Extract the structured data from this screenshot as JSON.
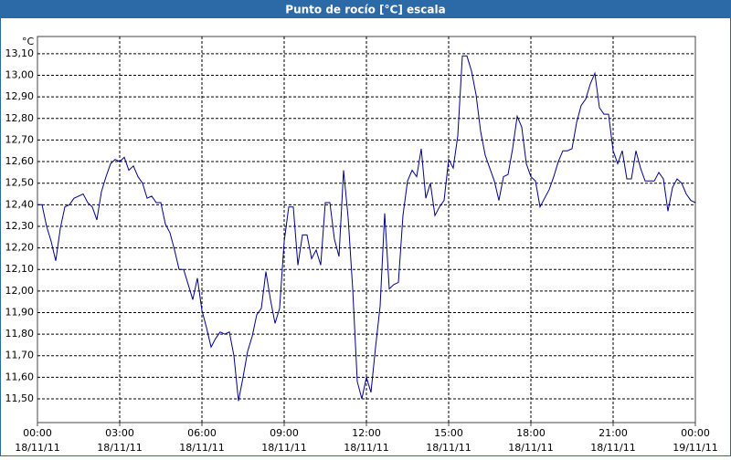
{
  "chart_data": {
    "type": "line",
    "title": "Punto de rocío [°C] escala",
    "y_unit": "°C",
    "x": [
      0,
      10,
      20,
      30,
      40,
      50,
      60,
      70,
      80,
      90,
      100,
      110,
      120,
      130,
      140,
      150,
      160,
      170,
      180,
      190,
      200,
      210,
      220,
      230,
      240,
      250,
      260,
      270,
      280,
      290,
      300,
      310,
      320,
      330,
      340,
      350,
      360,
      370,
      380,
      390,
      400,
      410,
      420,
      430,
      440,
      450,
      460,
      470,
      480,
      490,
      500,
      510,
      520,
      530,
      540,
      550,
      560,
      570,
      580,
      590,
      600,
      610,
      620,
      630,
      640,
      650,
      660,
      670,
      680,
      690,
      700,
      710,
      720,
      730,
      740,
      750,
      760,
      770,
      780,
      790,
      800,
      810,
      820,
      830,
      840,
      850,
      860,
      870,
      880,
      890,
      900,
      910,
      920,
      930,
      940,
      950,
      960,
      970,
      980,
      990,
      1000,
      1010,
      1020,
      1030,
      1040,
      1050,
      1060,
      1070,
      1080,
      1090,
      1100,
      1110,
      1120,
      1130,
      1140,
      1150,
      1160,
      1170,
      1180,
      1190,
      1200,
      1210,
      1220,
      1230,
      1240,
      1250,
      1260,
      1270,
      1280,
      1290,
      1300,
      1310,
      1320,
      1330,
      1340,
      1350,
      1360,
      1370,
      1380,
      1390,
      1400,
      1410,
      1420,
      1430,
      1440
    ],
    "series": [
      {
        "color": "#00008b",
        "values": [
          12.4,
          12.4,
          12.3,
          12.23,
          12.14,
          12.29,
          12.39,
          12.4,
          12.43,
          12.44,
          12.45,
          12.41,
          12.39,
          12.33,
          12.46,
          12.53,
          12.59,
          12.61,
          12.6,
          12.62,
          12.56,
          12.58,
          12.53,
          12.5,
          12.43,
          12.44,
          12.41,
          12.41,
          12.31,
          12.27,
          12.19,
          12.1,
          12.1,
          12.03,
          11.96,
          12.06,
          11.91,
          11.83,
          11.74,
          11.78,
          11.81,
          11.8,
          11.81,
          11.7,
          11.49,
          11.6,
          11.72,
          11.79,
          11.89,
          11.92,
          12.09,
          11.96,
          11.85,
          11.92,
          12.23,
          12.39,
          12.39,
          12.12,
          12.26,
          12.26,
          12.15,
          12.19,
          12.12,
          12.41,
          12.41,
          12.24,
          12.16,
          12.56,
          12.34,
          12.01,
          11.58,
          11.5,
          11.6,
          11.53,
          11.74,
          11.93,
          12.36,
          12.01,
          12.03,
          12.04,
          12.35,
          12.51,
          12.56,
          12.53,
          12.66,
          12.43,
          12.5,
          12.35,
          12.39,
          12.42,
          12.61,
          12.57,
          12.72,
          13.09,
          13.09,
          13.02,
          12.91,
          12.74,
          12.63,
          12.57,
          12.51,
          12.42,
          12.53,
          12.54,
          12.66,
          12.81,
          12.76,
          12.59,
          12.53,
          12.51,
          12.39,
          12.43,
          12.47,
          12.53,
          12.6,
          12.65,
          12.65,
          12.66,
          12.78,
          12.86,
          12.89,
          12.96,
          13.01,
          12.85,
          12.82,
          12.82,
          12.65,
          12.59,
          12.65,
          12.52,
          12.52,
          12.65,
          12.57,
          12.51,
          12.51,
          12.51,
          12.55,
          12.52,
          12.37,
          12.48,
          12.52,
          12.5,
          12.45,
          12.42,
          12.41
        ]
      }
    ],
    "xlim": [
      0,
      1440
    ],
    "xticks": [
      {
        "value": 0,
        "label": "00:00",
        "date": "18/11/11"
      },
      {
        "value": 180,
        "label": "03:00",
        "date": "18/11/11"
      },
      {
        "value": 360,
        "label": "06:00",
        "date": "18/11/11"
      },
      {
        "value": 540,
        "label": "09:00",
        "date": "18/11/11"
      },
      {
        "value": 720,
        "label": "12:00",
        "date": "18/11/11"
      },
      {
        "value": 900,
        "label": "15:00",
        "date": "18/11/11"
      },
      {
        "value": 1080,
        "label": "18:00",
        "date": "18/11/11"
      },
      {
        "value": 1260,
        "label": "21:00",
        "date": "18/11/11"
      },
      {
        "value": 1440,
        "label": "00:00",
        "date": "19/11/11"
      }
    ],
    "ylim": [
      11.39,
      13.18
    ],
    "yticks": [
      {
        "value": 11.5,
        "label": "11,50"
      },
      {
        "value": 11.6,
        "label": "11,60"
      },
      {
        "value": 11.7,
        "label": "11,70"
      },
      {
        "value": 11.8,
        "label": "11,80"
      },
      {
        "value": 11.9,
        "label": "11,90"
      },
      {
        "value": 12.0,
        "label": "12,00"
      },
      {
        "value": 12.1,
        "label": "12,10"
      },
      {
        "value": 12.2,
        "label": "12,20"
      },
      {
        "value": 12.3,
        "label": "12,30"
      },
      {
        "value": 12.4,
        "label": "12,40"
      },
      {
        "value": 12.5,
        "label": "12,50"
      },
      {
        "value": 12.6,
        "label": "12,60"
      },
      {
        "value": 12.7,
        "label": "12,70"
      },
      {
        "value": 12.8,
        "label": "12,80"
      },
      {
        "value": 12.9,
        "label": "12,90"
      },
      {
        "value": 13.0,
        "label": "13,00"
      },
      {
        "value": 13.1,
        "label": "13,10"
      }
    ],
    "grid": true
  }
}
